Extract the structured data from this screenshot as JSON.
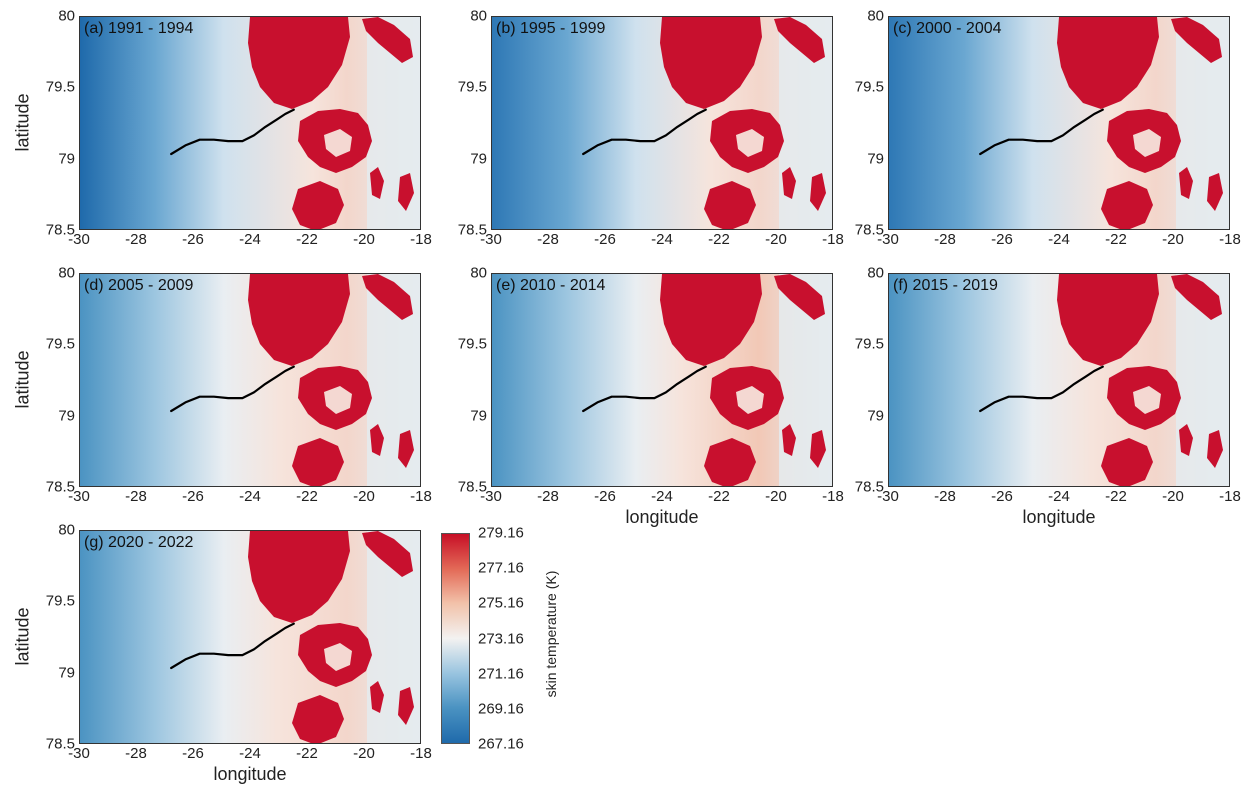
{
  "figure": {
    "panels": [
      {
        "label": "(a) 1991 - 1994",
        "tone": -1.0
      },
      {
        "label": "(b) 1995 - 1999",
        "tone": -0.5
      },
      {
        "label": "(c) 2000 - 2004",
        "tone": -0.6
      },
      {
        "label": "(d) 2005 - 2009",
        "tone": 0.2
      },
      {
        "label": "(e) 2010 - 2014",
        "tone": 0.6
      },
      {
        "label": "(f) 2015 - 2019",
        "tone": 0.1
      },
      {
        "label": "(g) 2020 - 2022",
        "tone": 0.3
      }
    ],
    "x_ticks": [
      "-30",
      "-28",
      "-26",
      "-24",
      "-22",
      "-20",
      "-18"
    ],
    "y_ticks": [
      "80",
      "79.5",
      "79",
      "78.5"
    ],
    "xlabel": "longitude",
    "ylabel": "latitude",
    "colorbar": {
      "title": "skin temperature (K)",
      "ticks": [
        "279.16",
        "277.16",
        "275.16",
        "273.16",
        "271.16",
        "269.16",
        "267.16"
      ],
      "min": 267.16,
      "max": 279.16,
      "colors": {
        "low": "#1f6aab",
        "mid": "#f3f2f1",
        "high": "#c70f26"
      }
    },
    "track": {
      "lon": [
        -26.8,
        -26.3,
        -25.8,
        -25.3,
        -24.8,
        -24.3,
        -23.9,
        -23.5,
        -23.1,
        -22.8,
        -22.5
      ],
      "lat": [
        79.04,
        79.1,
        79.14,
        79.14,
        79.13,
        79.13,
        79.17,
        79.23,
        79.28,
        79.32,
        79.35
      ]
    },
    "extent": {
      "lon": [
        -30,
        -18
      ],
      "lat": [
        78.5,
        80
      ]
    }
  }
}
